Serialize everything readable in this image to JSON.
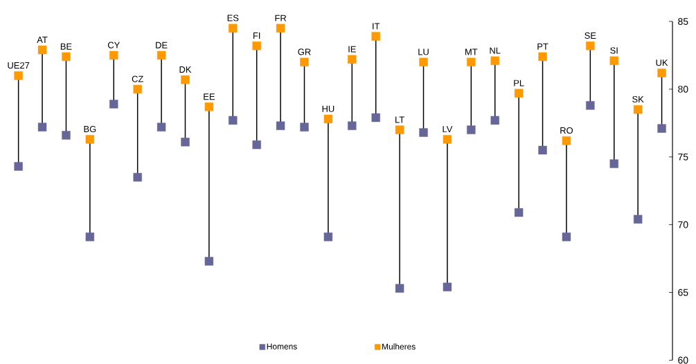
{
  "chart_data": {
    "type": "scatter",
    "categories": [
      "UE27",
      "AT",
      "BE",
      "BG",
      "CY",
      "CZ",
      "DE",
      "DK",
      "EE",
      "ES",
      "FI",
      "FR",
      "GR",
      "HU",
      "IE",
      "IT",
      "LT",
      "LU",
      "LV",
      "MT",
      "NL",
      "PL",
      "PT",
      "RO",
      "SE",
      "SI",
      "SK",
      "UK"
    ],
    "series": [
      {
        "name": "Homens",
        "color": "#666699",
        "values": [
          74.3,
          77.2,
          76.6,
          69.1,
          78.9,
          73.5,
          77.2,
          76.1,
          67.3,
          77.7,
          75.9,
          77.3,
          77.2,
          69.1,
          77.3,
          77.9,
          65.3,
          76.8,
          65.4,
          77.0,
          77.7,
          70.9,
          75.5,
          69.1,
          78.8,
          74.5,
          70.4,
          77.1
        ]
      },
      {
        "name": "Mulheres",
        "color": "#ff9900",
        "values": [
          81.0,
          82.9,
          82.4,
          76.3,
          82.5,
          80.0,
          82.5,
          80.7,
          78.7,
          84.5,
          83.2,
          84.5,
          82.0,
          77.8,
          82.2,
          83.9,
          77.0,
          82.0,
          76.3,
          82.0,
          82.1,
          79.7,
          82.4,
          76.2,
          83.2,
          82.1,
          78.5,
          81.2
        ]
      }
    ],
    "ylim": [
      60,
      85
    ],
    "yticks": [
      60,
      65,
      70,
      75,
      80,
      85
    ],
    "marker": "square",
    "legend": "bottom",
    "grid": false
  }
}
